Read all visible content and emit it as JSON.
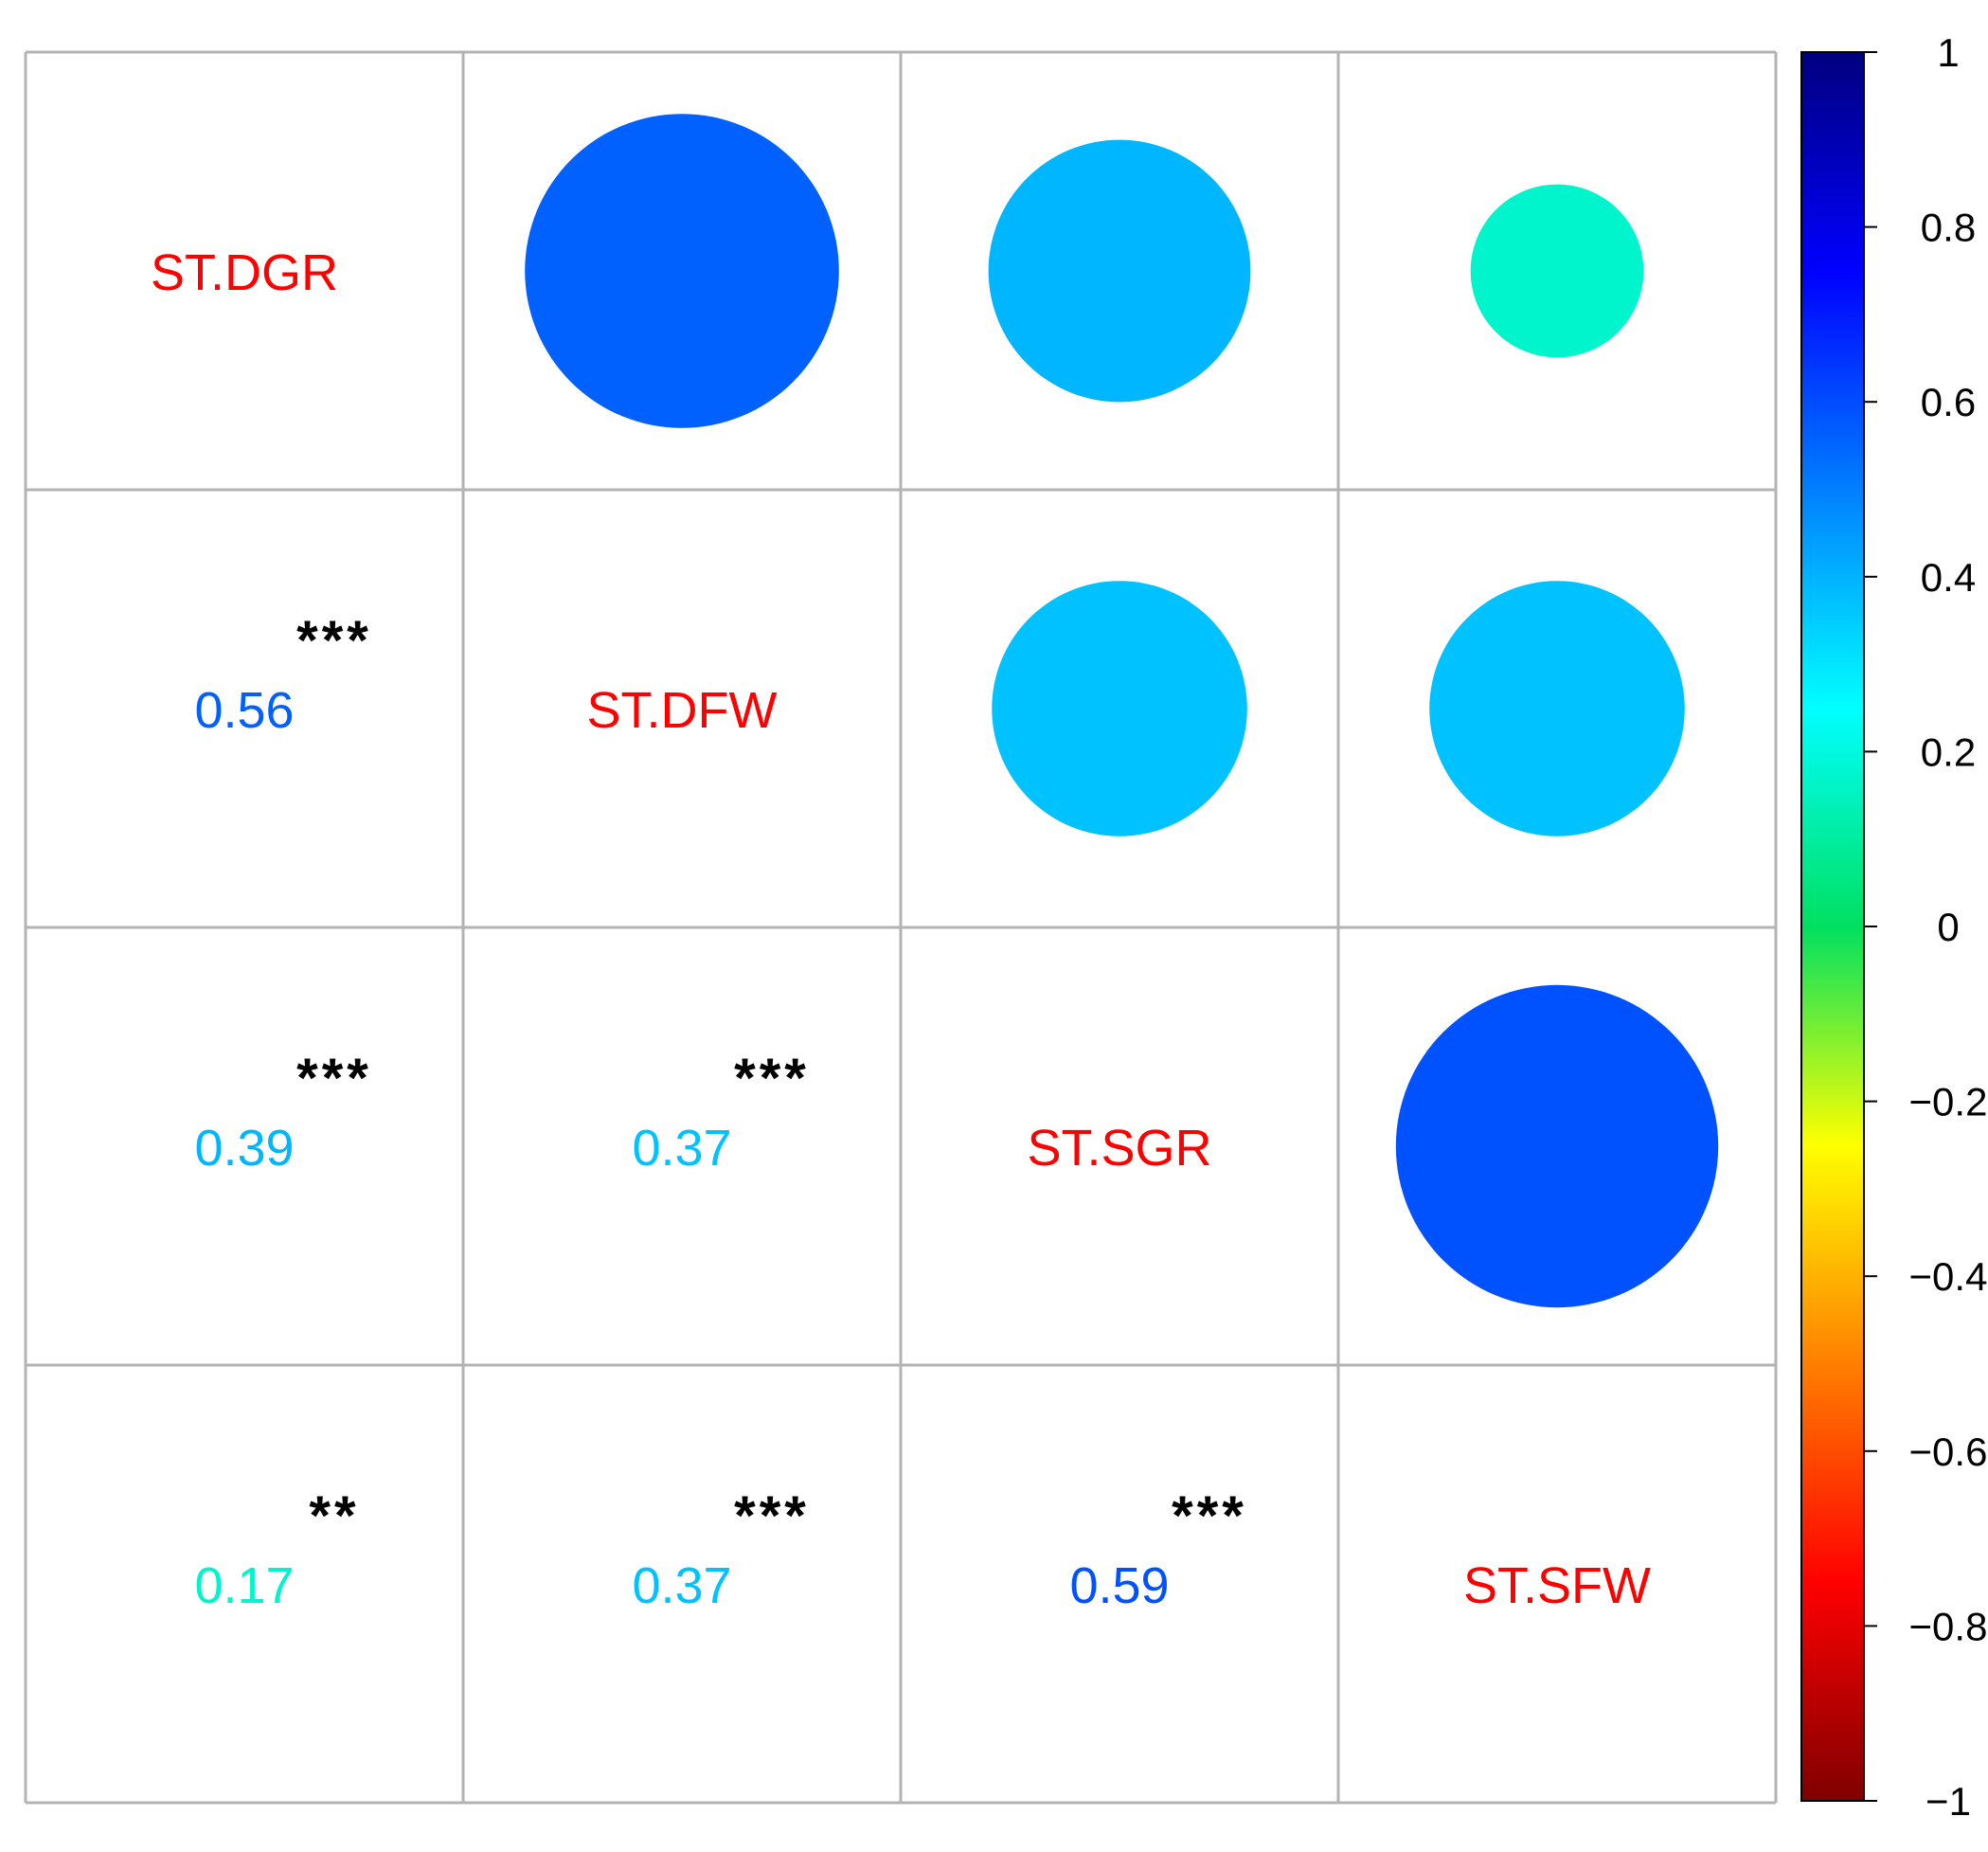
{
  "chart_data": {
    "type": "heatmap",
    "variables": [
      "ST.DGR",
      "ST.DFW",
      "ST.SGR",
      "ST.SFW"
    ],
    "correlations": [
      {
        "row": 1,
        "col": 0,
        "r": 0.56,
        "sig": "***"
      },
      {
        "row": 2,
        "col": 0,
        "r": 0.39,
        "sig": "***"
      },
      {
        "row": 2,
        "col": 1,
        "r": 0.37,
        "sig": "***"
      },
      {
        "row": 3,
        "col": 0,
        "r": 0.17,
        "sig": "**"
      },
      {
        "row": 3,
        "col": 1,
        "r": 0.37,
        "sig": "***"
      },
      {
        "row": 3,
        "col": 2,
        "r": 0.59,
        "sig": "***"
      }
    ],
    "colorbar": {
      "min": -1,
      "max": 1,
      "ticks": [
        "1",
        "0.8",
        "0.6",
        "0.4",
        "0.2",
        "0",
        "−0.2",
        "−0.4",
        "−0.6",
        "−0.8",
        "−1"
      ],
      "stops": [
        "#7f0000",
        "#ff0000",
        "#ff7f00",
        "#ffff00",
        "#00e060",
        "#00ffff",
        "#007fff",
        "#0000ff",
        "#00007f"
      ]
    },
    "label_color": "#ff0000",
    "sig_color": "#000000"
  }
}
